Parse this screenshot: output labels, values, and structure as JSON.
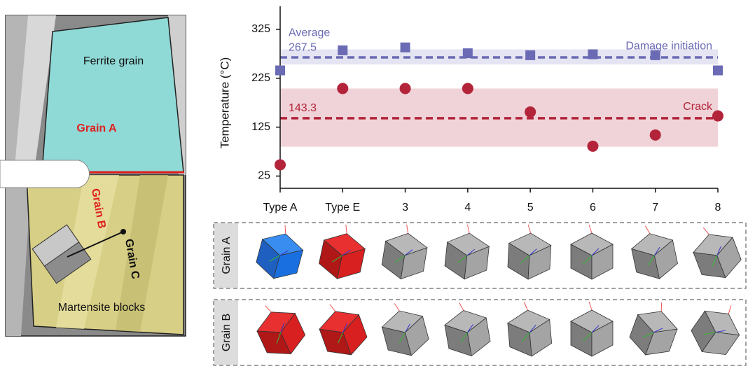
{
  "panel": {
    "ferrite_label": "Ferrite grain",
    "grain_a": "Grain A",
    "grain_b": "Grain B",
    "grain_c": "Grain C",
    "martensite_label": "Martensite blocks"
  },
  "chart_data": {
    "type": "dot",
    "y_label": "Temperature (°C)",
    "annotation": "Average",
    "categories": [
      "Type A",
      "Type E",
      "3",
      "4",
      "5",
      "6",
      "7",
      "8"
    ],
    "ylim": [
      0,
      372
    ],
    "yticks": [
      25,
      125,
      225,
      325
    ],
    "series": [
      {
        "name": "Damage initiation",
        "color": "#6a6ab5",
        "marker": "square",
        "values": [
          241,
          282,
          288,
          276,
          272,
          274,
          272,
          241
        ],
        "mean": 267.5,
        "band": [
          253,
          284
        ]
      },
      {
        "name": "Crack",
        "color": "#b3243a",
        "marker": "circle",
        "values": [
          48,
          204,
          204,
          204,
          156,
          86,
          109,
          148
        ],
        "mean": 143.3,
        "band": [
          85,
          204
        ]
      }
    ]
  },
  "orientation_rows": [
    "Grain A",
    "Grain B"
  ]
}
